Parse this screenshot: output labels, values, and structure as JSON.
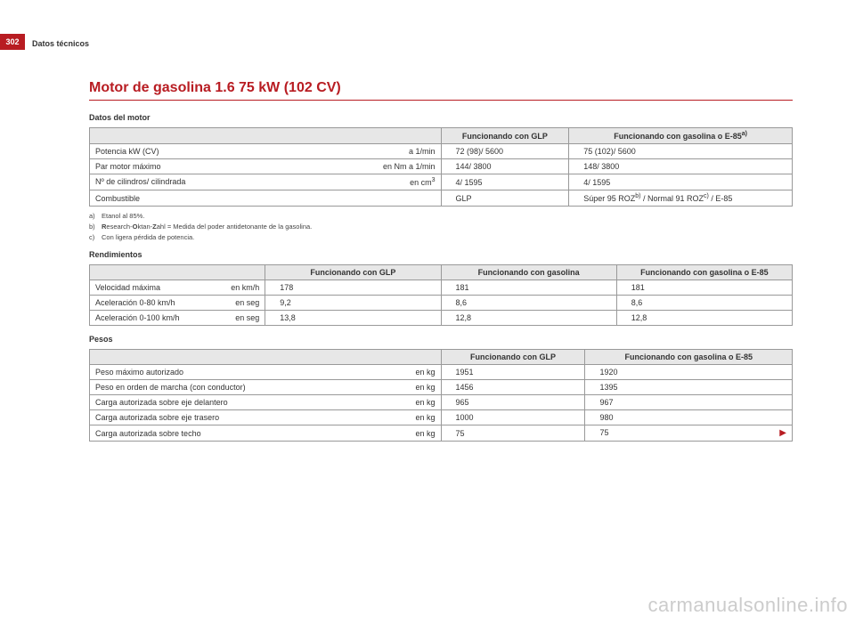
{
  "page_number": "302",
  "header_section": "Datos técnicos",
  "title": "Motor de gasolina 1.6 75 kW (102 CV)",
  "motor": {
    "heading": "Datos del motor",
    "col_glp": "Funcionando con GLP",
    "col_gas": "Funcionando con gasolina o E-85",
    "col_gas_sup": "a)",
    "rows": [
      {
        "label": "Potencia kW (CV)",
        "unit": "a 1/min",
        "glp": "72 (98)/ 5600",
        "gas": "75 (102)/ 5600"
      },
      {
        "label": "Par motor máximo",
        "unit": "en Nm a 1/min",
        "glp": "144/ 3800",
        "gas": "148/ 3800"
      },
      {
        "label": "Nº de cilindros/ cilindrada",
        "unit": "en cm",
        "unit_sup": "3",
        "glp": "4/ 1595",
        "gas": "4/ 1595"
      },
      {
        "label": "Combustible",
        "unit": "",
        "glp": "GLP",
        "gas": "Súper 95 ROZ",
        "gas_sup1": "b)",
        "gas_mid": " / Normal 91 ROZ",
        "gas_sup2": "c)",
        "gas_tail": " / E-85"
      }
    ]
  },
  "footnotes": {
    "a_label": "a)",
    "a_text": "Etanol al 85%.",
    "b_label": "b)",
    "b_pre": "",
    "b_text_r": "R",
    "b_text_1": "esearch-",
    "b_text_o": "O",
    "b_text_2": "ktan-",
    "b_text_z": "Z",
    "b_text_3": "ahl = Medida del poder antidetonante de la gasolina.",
    "c_label": "c)",
    "c_text": "Con ligera pérdida de potencia."
  },
  "rend": {
    "heading": "Rendimientos",
    "col_glp": "Funcionando con GLP",
    "col_gas": "Funcionando con gasolina",
    "col_e85": "Funcionando con gasolina o E-85",
    "rows": [
      {
        "label": "Velocidad máxima",
        "unit": "en km/h",
        "glp": "178",
        "gas": "181",
        "e85": "181"
      },
      {
        "label": "Aceleración 0-80 km/h",
        "unit": "en seg",
        "glp": "9,2",
        "gas": "8,6",
        "e85": "8,6"
      },
      {
        "label": "Aceleración 0-100 km/h",
        "unit": "en seg",
        "glp": "13,8",
        "gas": "12,8",
        "e85": "12,8"
      }
    ]
  },
  "pesos": {
    "heading": "Pesos",
    "col_glp": "Funcionando con GLP",
    "col_gas": "Funcionando con gasolina o E-85",
    "rows": [
      {
        "label": "Peso máximo autorizado",
        "unit": "en kg",
        "glp": "1951",
        "gas": "1920"
      },
      {
        "label": "Peso en orden de marcha (con conductor)",
        "unit": "en kg",
        "glp": "1456",
        "gas": "1395"
      },
      {
        "label": "Carga autorizada sobre eje delantero",
        "unit": "en kg",
        "glp": "965",
        "gas": "967"
      },
      {
        "label": "Carga autorizada sobre eje trasero",
        "unit": "en kg",
        "glp": "1000",
        "gas": "980"
      },
      {
        "label": "Carga autorizada sobre techo",
        "unit": "en kg",
        "glp": "75",
        "gas": "75"
      }
    ]
  },
  "watermark": "carmanualsonline.info",
  "arrow": "▶"
}
